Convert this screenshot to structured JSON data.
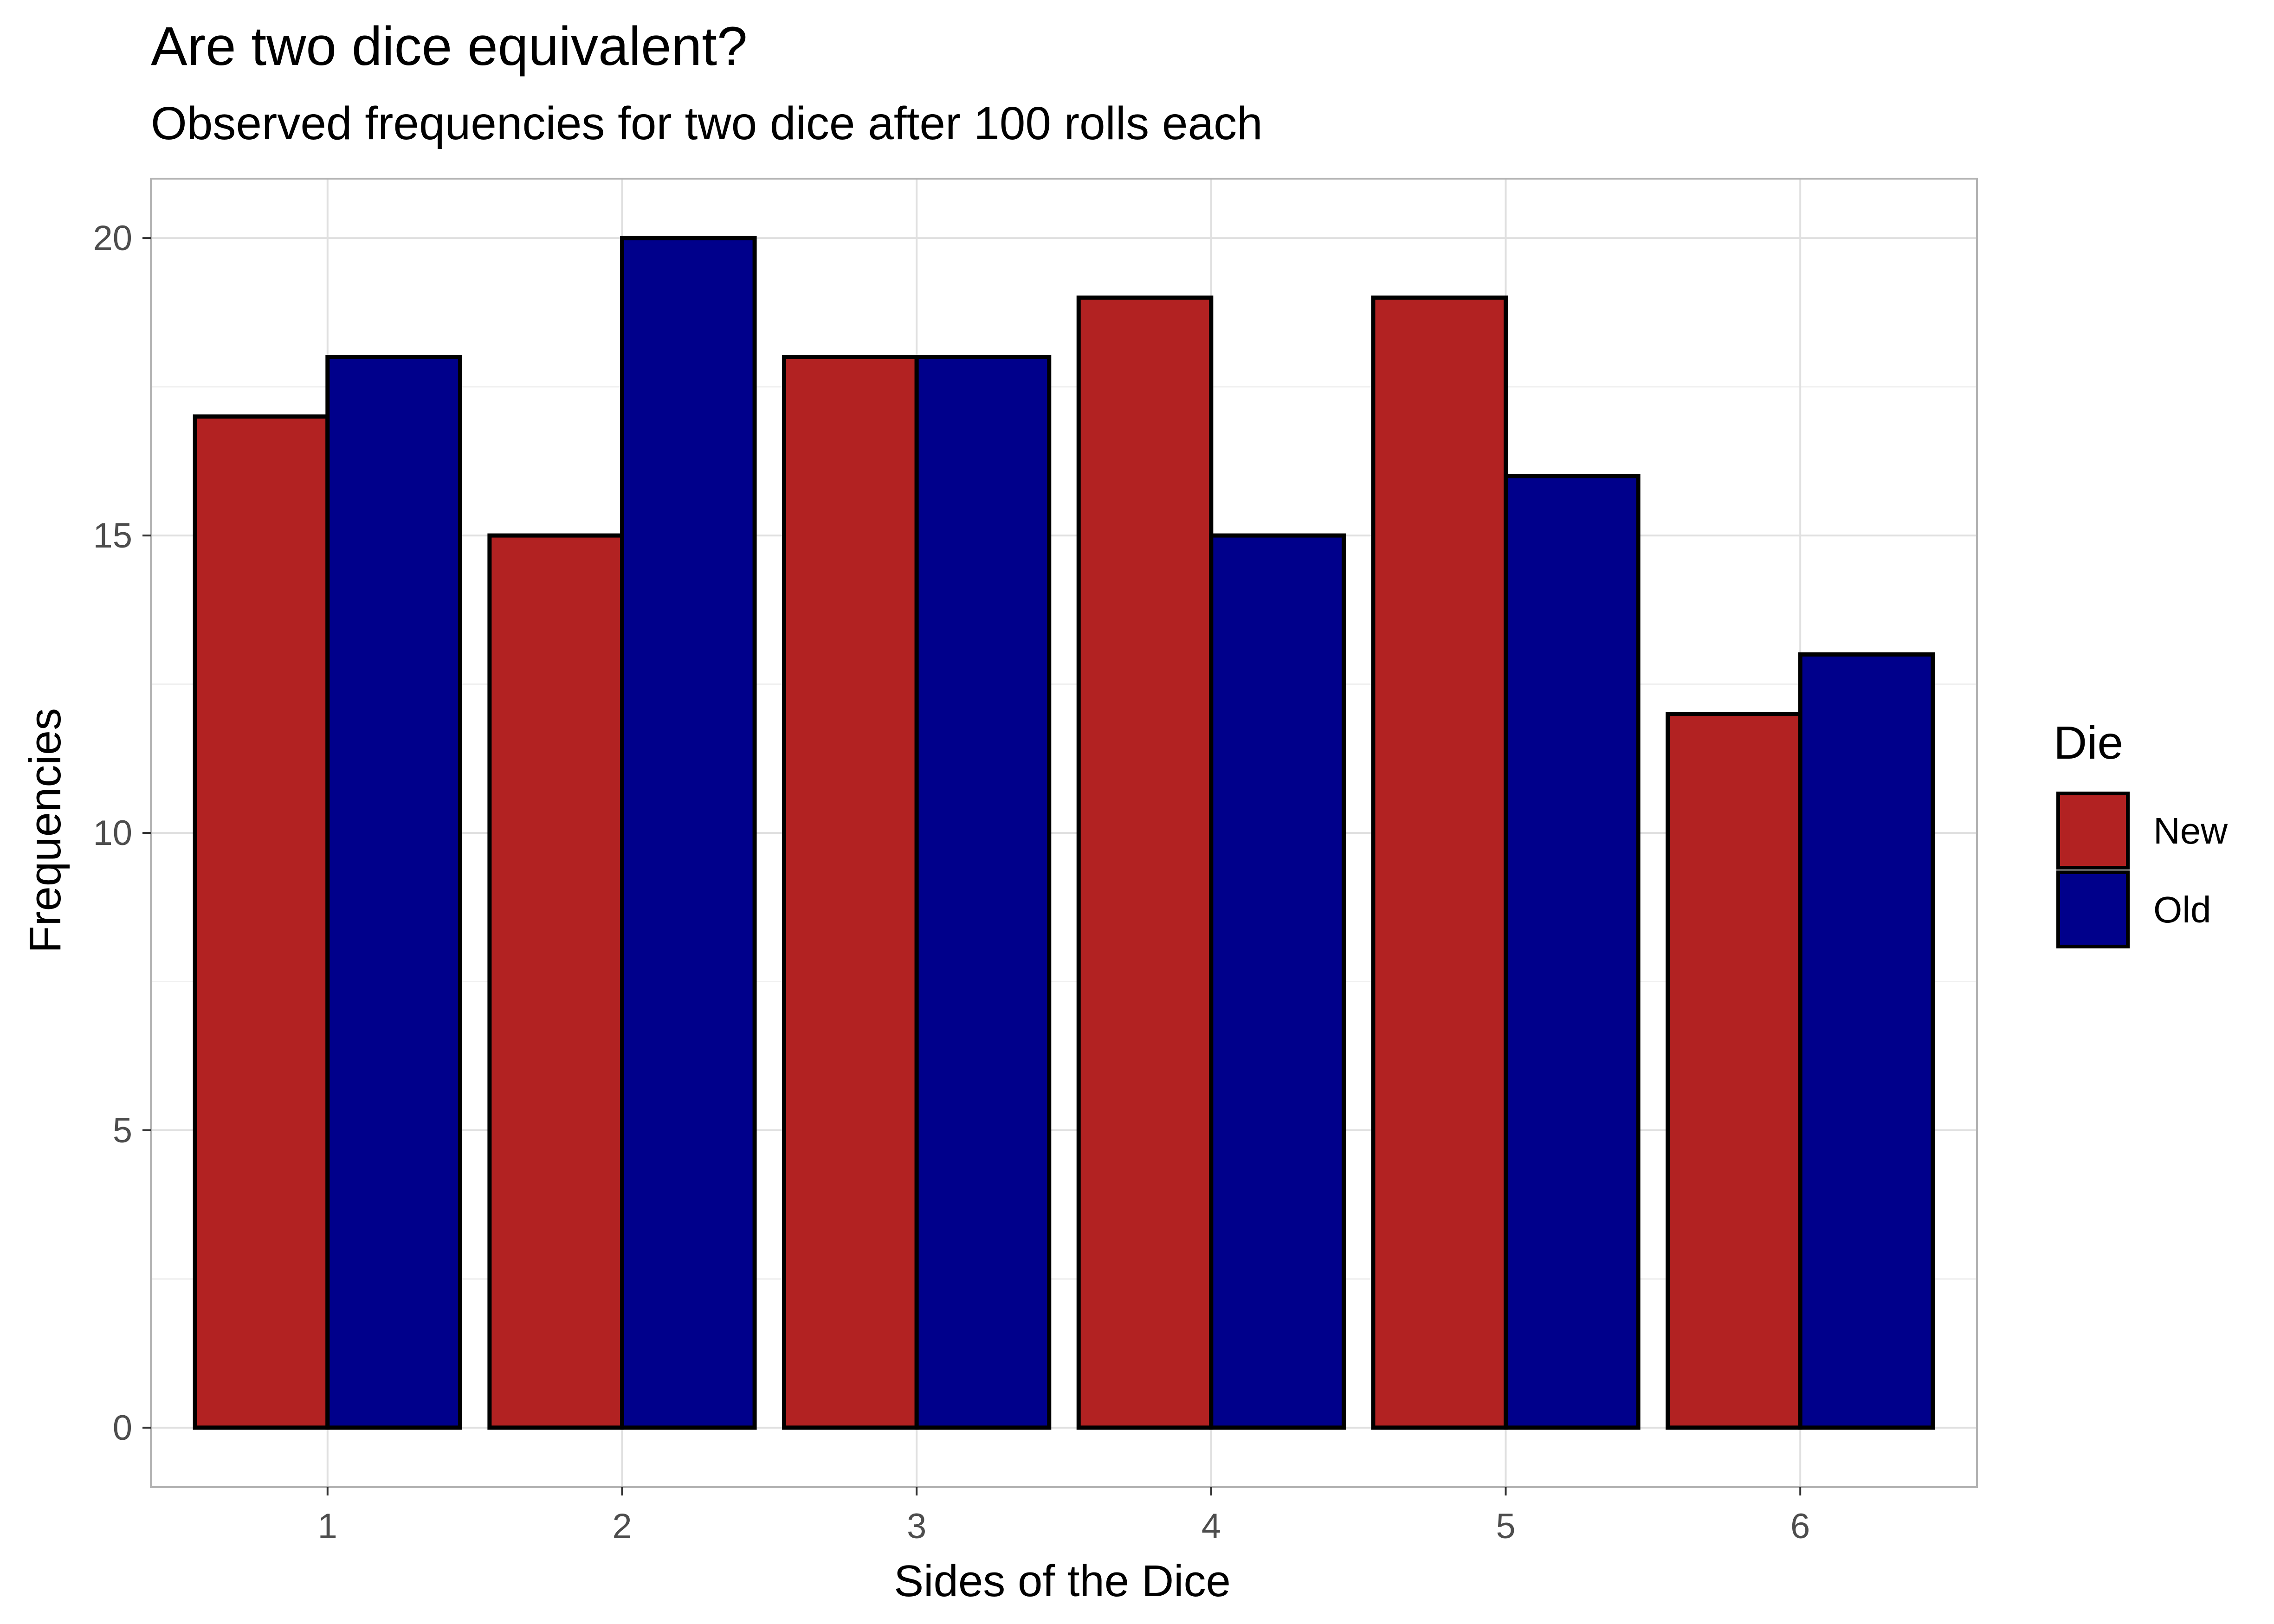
{
  "chart_data": {
    "type": "bar",
    "title": "Are two dice equivalent?",
    "subtitle": "Observed frequencies for two dice after 100 rolls each",
    "xlabel": "Sides of the Dice",
    "ylabel": "Frequencies",
    "categories": [
      "1",
      "2",
      "3",
      "4",
      "5",
      "6"
    ],
    "series": [
      {
        "name": "New",
        "values": [
          17,
          15,
          18,
          19,
          19,
          12
        ],
        "color": "#b22222"
      },
      {
        "name": "Old",
        "values": [
          18,
          20,
          18,
          15,
          16,
          13
        ],
        "color": "#00008b"
      }
    ],
    "ylim": [
      -1,
      21
    ],
    "yticks": [
      0,
      5,
      10,
      15,
      20
    ],
    "grid": true,
    "legend": {
      "title": "Die",
      "position": "right"
    },
    "bar_outline_color": "#000000"
  }
}
